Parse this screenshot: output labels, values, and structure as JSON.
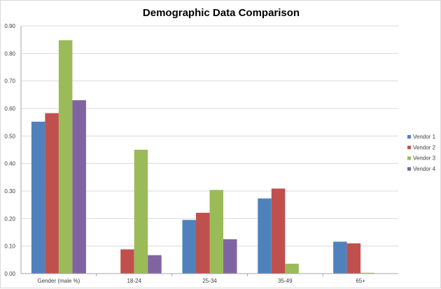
{
  "chart_data": {
    "type": "bar",
    "title": "Demographic Data Comparison",
    "xlabel": "",
    "ylabel": "",
    "ylim": [
      0,
      0.9
    ],
    "yticks": [
      "0.00",
      "0.10",
      "0.20",
      "0.30",
      "0.40",
      "0.50",
      "0.60",
      "0.70",
      "0.80",
      "0.90"
    ],
    "grid": true,
    "legend_position": "right",
    "categories": [
      "Gender (male %)",
      "18-24",
      "25-34",
      "35-49",
      "65+"
    ],
    "series": [
      {
        "name": "Vendor 1",
        "color": "#4f81bd",
        "values": [
          0.552,
          0,
          0.195,
          0.273,
          0.116
        ]
      },
      {
        "name": "Vendor 2",
        "color": "#c0504d",
        "values": [
          0.583,
          0.088,
          0.221,
          0.309,
          0.11
        ]
      },
      {
        "name": "Vendor 3",
        "color": "#9bbb59",
        "values": [
          0.848,
          0.45,
          0.304,
          0.036,
          0.003
        ]
      },
      {
        "name": "Vendor 4",
        "color": "#8064a2",
        "values": [
          0.63,
          0.067,
          0.125,
          0,
          0
        ]
      }
    ]
  }
}
